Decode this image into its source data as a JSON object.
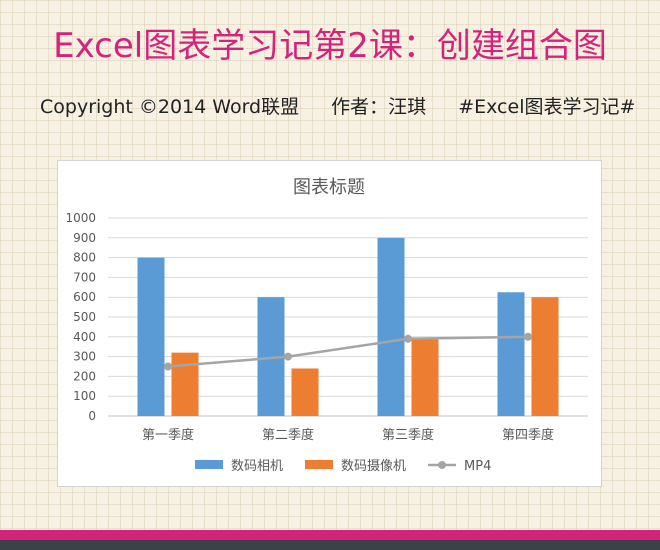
{
  "header": {
    "title": "Excel图表学习记第2课：创建组合图",
    "copyright": "Copyright ©2014 Word联盟",
    "author": "作者：汪琪",
    "hashtag": "#Excel图表学习记#"
  },
  "colors": {
    "title": "#d6237a",
    "band_pink": "#d6237a",
    "band_dark": "#3c4348",
    "series_blue": "#5b9bd5",
    "series_orange": "#ed7d31",
    "series_gray": "#a5a5a5"
  },
  "chart_data": {
    "type": "bar",
    "title": "图表标题",
    "categories": [
      "第一季度",
      "第二季度",
      "第三季度",
      "第四季度"
    ],
    "series": [
      {
        "name": "数码相机",
        "type": "bar",
        "color": "#5b9bd5",
        "values": [
          800,
          600,
          900,
          625
        ]
      },
      {
        "name": "数码摄像机",
        "type": "bar",
        "color": "#ed7d31",
        "values": [
          320,
          240,
          390,
          600
        ]
      },
      {
        "name": "MP4",
        "type": "line",
        "color": "#a5a5a5",
        "values": [
          250,
          300,
          390,
          400
        ]
      }
    ],
    "ylim": [
      0,
      1000
    ],
    "yticks": [
      "0",
      "100",
      "200",
      "300",
      "400",
      "500",
      "600",
      "700",
      "800",
      "900",
      "1000"
    ],
    "grid": true,
    "legend": "bottom"
  }
}
